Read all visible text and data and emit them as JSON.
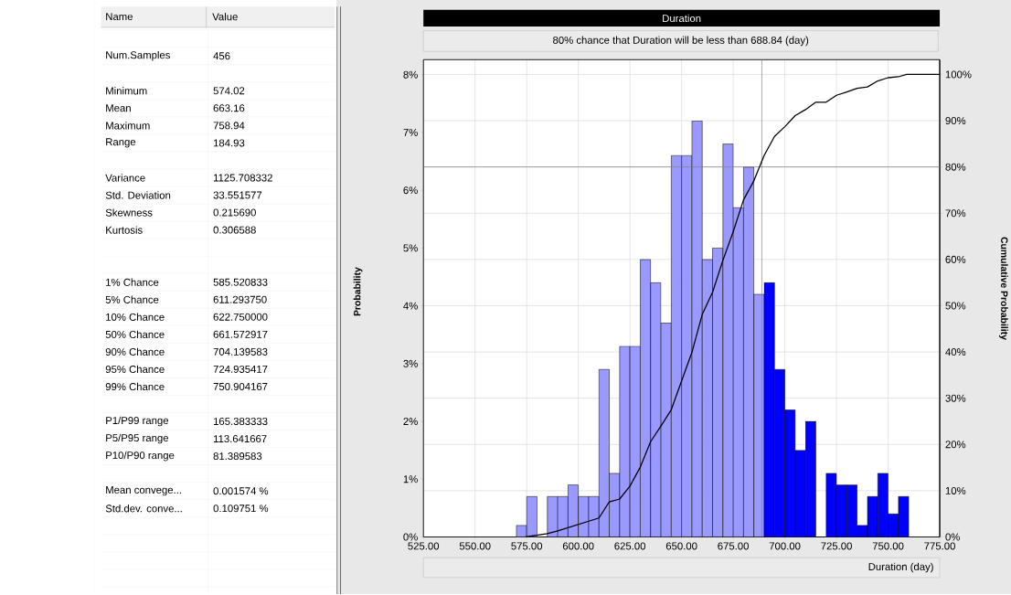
{
  "chart_data": [
    {
      "type": "other",
      "annotations": [
        "Name",
        "Value",
        "Num.Samples",
        "456",
        "Minimum",
        "574.02",
        "Mean",
        "663.16",
        "Maximum",
        "758.94",
        "Range",
        "184.93",
        "Variance",
        "1125.708332",
        "Std. Deviation",
        "33.551577",
        "Skewness",
        "0.215690",
        "Kurtosis",
        "0.306588",
        "1% Chance",
        "585.520833",
        "5% Chance",
        "611.293750",
        "10% Chance",
        "622.750000",
        "50% Chance",
        "661.572917",
        "90% Chance",
        "704.139583",
        "95% Chance",
        "724.935417",
        "99% Chance",
        "750.904167",
        "P1/P99 range",
        "165.383333",
        "P5/P95 range",
        "113.641667",
        "P10/P90 range",
        "81.389583",
        "Mean convege...",
        "0.001574 %",
        "Std.dev. conve...",
        "0.109751 %"
      ]
    },
    {
      "type": "histogram",
      "title": "Duration",
      "subtitle": "80% chance that Duration will be less than 688.84 (day)",
      "xlabel": "Duration (day)",
      "ylabel": "Probability",
      "y2label": "Cumulative Probability",
      "bins": [
        570,
        575,
        580,
        585,
        590,
        595,
        600,
        605,
        610,
        615,
        620,
        625,
        630,
        635,
        640,
        645,
        650,
        655,
        660,
        665,
        670,
        675,
        680,
        685,
        690,
        695,
        700,
        705,
        710,
        715,
        720,
        725,
        730,
        735,
        740,
        745,
        750,
        755,
        760
      ],
      "values": [
        0.2,
        0.7,
        0,
        0.7,
        0.7,
        0.9,
        0.7,
        0.7,
        2.9,
        1.1,
        3.3,
        3.3,
        4.8,
        4.4,
        3.7,
        6.6,
        6.6,
        7.2,
        4.8,
        5.0,
        6.8,
        5.7,
        6.4,
        4.2,
        4.4,
        2.9,
        2.2,
        1.5,
        2.0,
        0,
        1.1,
        0.9,
        0.9,
        0.2,
        0.7,
        1.1,
        0.4,
        0.7
      ],
      "colors": [
        "#9999ff",
        "#9999ff",
        "#9999ff",
        "#9999ff",
        "#9999ff",
        "#9999ff",
        "#9999ff",
        "#9999ff",
        "#9999ff",
        "#9999ff",
        "#9999ff",
        "#9999ff",
        "#9999ff",
        "#9999ff",
        "#9999ff",
        "#9999ff",
        "#9999ff",
        "#9999ff",
        "#9999ff",
        "#9999ff",
        "#9999ff",
        "#9999ff",
        "#9999ff",
        "#9999ff",
        "#0000ff",
        "#0000ff",
        "#0000ff",
        "#0000ff",
        "#0000ff",
        "#0000ff",
        "#0000ff",
        "#0000ff",
        "#0000ff",
        "#0000ff",
        "#0000ff",
        "#0000ff",
        "#0000ff",
        "#0000ff"
      ],
      "series": [
        {
          "type": "line",
          "axis": "y2",
          "color": "#000000",
          "x": [
            574.5,
            585,
            590,
            600,
            610,
            615,
            620,
            625,
            630,
            635,
            640,
            645,
            650,
            655,
            660,
            665,
            670,
            675,
            680,
            685,
            690,
            695,
            700,
            705,
            710,
            715,
            720,
            725,
            730,
            735,
            740,
            745,
            750,
            755,
            759,
            775
          ],
          "values": [
            0,
            0.7,
            1.3,
            2.7,
            4.1,
            7.6,
            8.2,
            11.0,
            15.1,
            20.6,
            24,
            27.5,
            33.7,
            39.9,
            48.1,
            52.9,
            59.8,
            66.0,
            72.9,
            77.0,
            82.5,
            86.6,
            88.7,
            91.1,
            92.4,
            94.0,
            94.0,
            95.5,
            96.2,
            97.0,
            97.3,
            98.6,
            99.3,
            99.5,
            100,
            100
          ]
        }
      ],
      "xlim": [
        525,
        775
      ],
      "xticks": [
        {
          "value": 525,
          "label": "525.00"
        },
        {
          "value": 550,
          "label": "550.00"
        },
        {
          "value": 575,
          "label": "575.00"
        },
        {
          "value": 600,
          "label": "600.00"
        },
        {
          "value": 625,
          "label": "625.00"
        },
        {
          "value": 650,
          "label": "650.00"
        },
        {
          "value": 675,
          "label": "675.00"
        },
        {
          "value": 700,
          "label": "700.00"
        },
        {
          "value": 725,
          "label": "725.00"
        },
        {
          "value": 750,
          "label": "750.00"
        },
        {
          "value": 775,
          "label": "775.00"
        }
      ],
      "ylim": [
        0,
        8.26
      ],
      "yticks": [
        {
          "value": 0,
          "label": "0%"
        },
        {
          "value": 1,
          "label": "1%"
        },
        {
          "value": 2,
          "label": "2%"
        },
        {
          "value": 3,
          "label": "3%"
        },
        {
          "value": 4,
          "label": "4%"
        },
        {
          "value": 5,
          "label": "5%"
        },
        {
          "value": 6,
          "label": "6%"
        },
        {
          "value": 7,
          "label": "7%"
        },
        {
          "value": 8,
          "label": "8%"
        }
      ],
      "y2lim": [
        0,
        103.2
      ],
      "y2ticks": [
        {
          "value": 0,
          "label": "0%"
        },
        {
          "value": 10,
          "label": "10%"
        },
        {
          "value": 20,
          "label": "20%"
        },
        {
          "value": 30,
          "label": "30%"
        },
        {
          "value": 40,
          "label": "40%"
        },
        {
          "value": 50,
          "label": "50%"
        },
        {
          "value": 60,
          "label": "60%"
        },
        {
          "value": 70,
          "label": "70%"
        },
        {
          "value": 80,
          "label": "80%"
        },
        {
          "value": 90,
          "label": "90%"
        },
        {
          "value": 100,
          "label": "100%"
        }
      ],
      "ref_lines": [
        {
          "axis": "x",
          "value": 688.84,
          "color": "#808080"
        },
        {
          "axis": "y2",
          "value": 80,
          "color": "#808080"
        }
      ],
      "grid": true
    }
  ]
}
